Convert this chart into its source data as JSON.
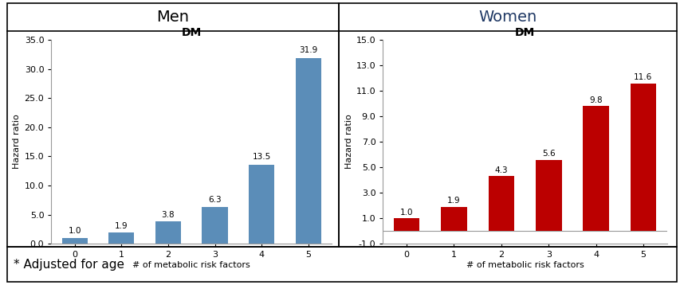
{
  "men": {
    "title_panel": "Men",
    "title_chart": "DM",
    "categories": [
      "0",
      "1",
      "2",
      "3",
      "4",
      "5"
    ],
    "values": [
      1.0,
      1.9,
      3.8,
      6.3,
      13.5,
      31.9
    ],
    "bar_color": "#5B8DB8",
    "ylabel": "Hazard ratio",
    "xlabel": "# of metabolic risk factors",
    "ylim": [
      0.0,
      35.0
    ],
    "yticks": [
      0.0,
      5.0,
      10.0,
      15.0,
      20.0,
      25.0,
      30.0,
      35.0
    ],
    "ytick_labels": [
      "0.0",
      "5.0",
      "10.0",
      "15.0",
      "20.0",
      "25.0",
      "30.0",
      "35.0"
    ]
  },
  "women": {
    "title_panel": "Women",
    "title_chart": "DM",
    "categories": [
      "0",
      "1",
      "2",
      "3",
      "4",
      "5"
    ],
    "values": [
      1.0,
      1.9,
      4.3,
      5.6,
      9.8,
      11.6
    ],
    "bar_color": "#BB0000",
    "ylabel": "Hazard ratio",
    "xlabel": "# of metabolic risk factors",
    "ylim": [
      -1.0,
      15.0
    ],
    "yticks": [
      -1.0,
      1.0,
      3.0,
      5.0,
      7.0,
      9.0,
      11.0,
      13.0,
      15.0
    ],
    "ytick_labels": [
      "-1.0",
      "1.0",
      "3.0",
      "5.0",
      "7.0",
      "9.0",
      "11.0",
      "13.0",
      "15.0"
    ]
  },
  "footnote": "* Adjusted for age",
  "bg_color": "#FFFFFF",
  "border_color": "#000000",
  "title_color_men": "#000000",
  "title_color_women": "#1F3864"
}
